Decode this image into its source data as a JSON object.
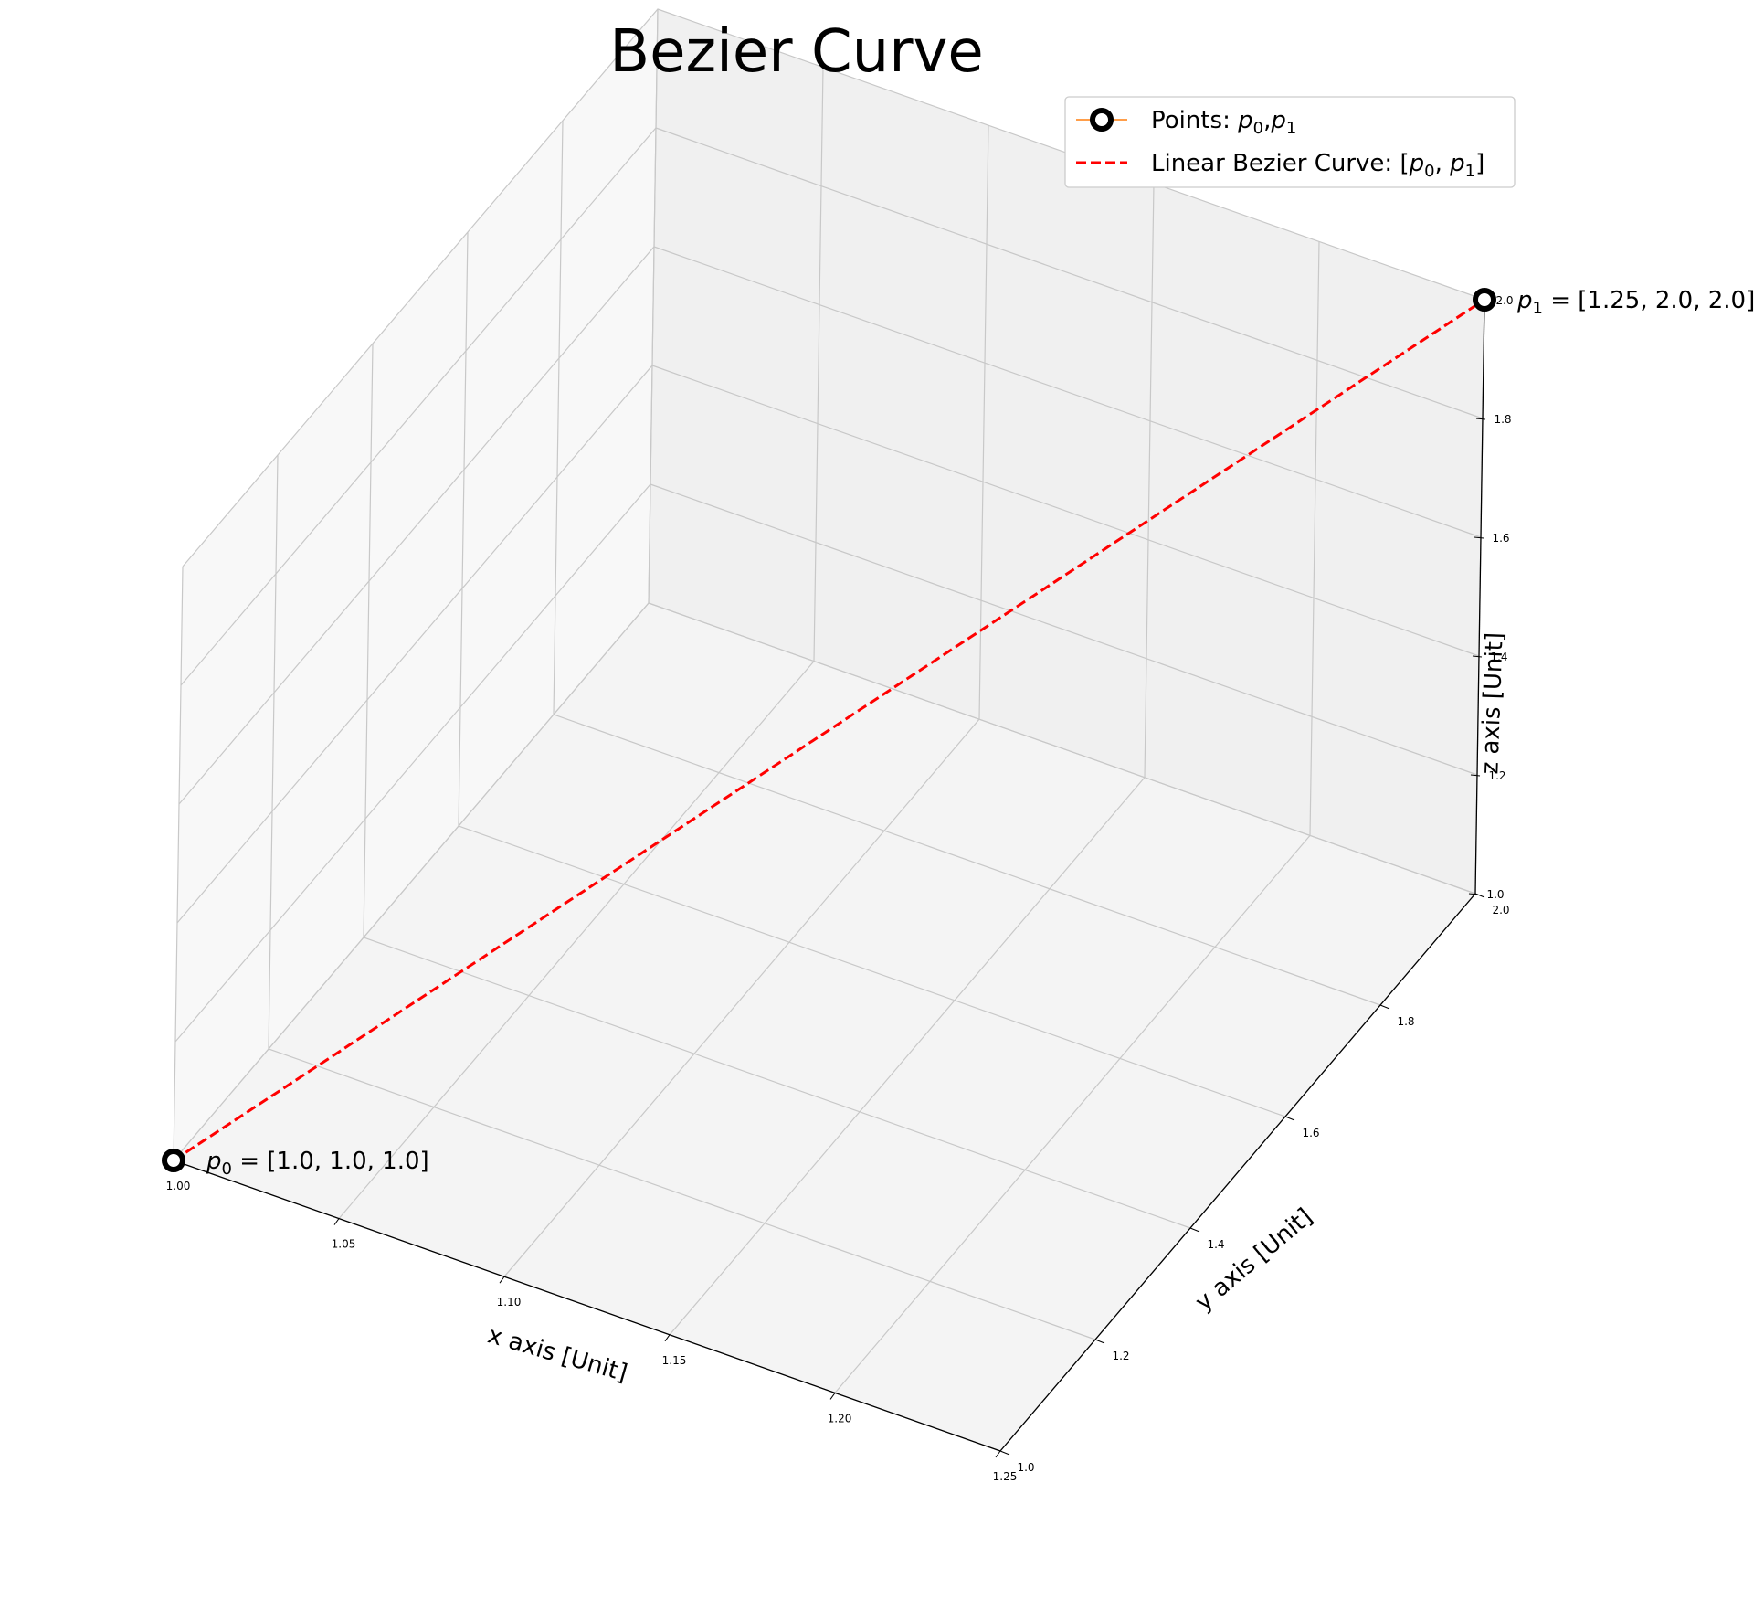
{
  "chart_data": {
    "type": "line",
    "title": "Bezier Curve",
    "xlabel": "x axis [Unit]",
    "ylabel": "y axis [Unit]",
    "zlabel": "z axis [Unit]",
    "x_ticks": [
      "1.00",
      "1.05",
      "1.10",
      "1.15",
      "1.20",
      "1.25"
    ],
    "y_ticks": [
      "1.0",
      "1.2",
      "1.4",
      "1.6",
      "1.8",
      "2.0"
    ],
    "z_ticks": [
      "1.0",
      "1.2",
      "1.4",
      "1.6",
      "1.8",
      "2.0"
    ],
    "xlim": [
      1.0,
      1.25
    ],
    "ylim": [
      1.0,
      2.0
    ],
    "zlim": [
      1.0,
      2.0
    ],
    "grid": true,
    "legend_position": "top-right",
    "points": [
      {
        "name": "p0",
        "x": 1.0,
        "y": 1.0,
        "z": 1.0,
        "label_sym": "p",
        "label_sub": "0",
        "label_rest": " = [1.0, 1.0, 1.0]"
      },
      {
        "name": "p1",
        "x": 1.25,
        "y": 2.0,
        "z": 2.0,
        "label_sym": "p",
        "label_sub": "1",
        "label_rest": " = [1.25, 2.0, 2.0]"
      }
    ],
    "series": [
      {
        "name": "Points: p0, p1",
        "legend": {
          "lead": "Points: ",
          "s1": "p",
          "b1": "0",
          "mid": ",",
          "s2": "p",
          "b2": "1",
          "tail": ""
        },
        "style": "markers",
        "marker_color": "#000000",
        "line_color": "#ff7f0e"
      },
      {
        "name": "Linear Bezier Curve: [p0, p1]",
        "legend": {
          "lead": "Linear Bezier Curve: [",
          "s1": "p",
          "b1": "0",
          "mid": ", ",
          "s2": "p",
          "b2": "1",
          "tail": "]"
        },
        "style": "dashed",
        "line_color": "#ff0000"
      }
    ]
  }
}
